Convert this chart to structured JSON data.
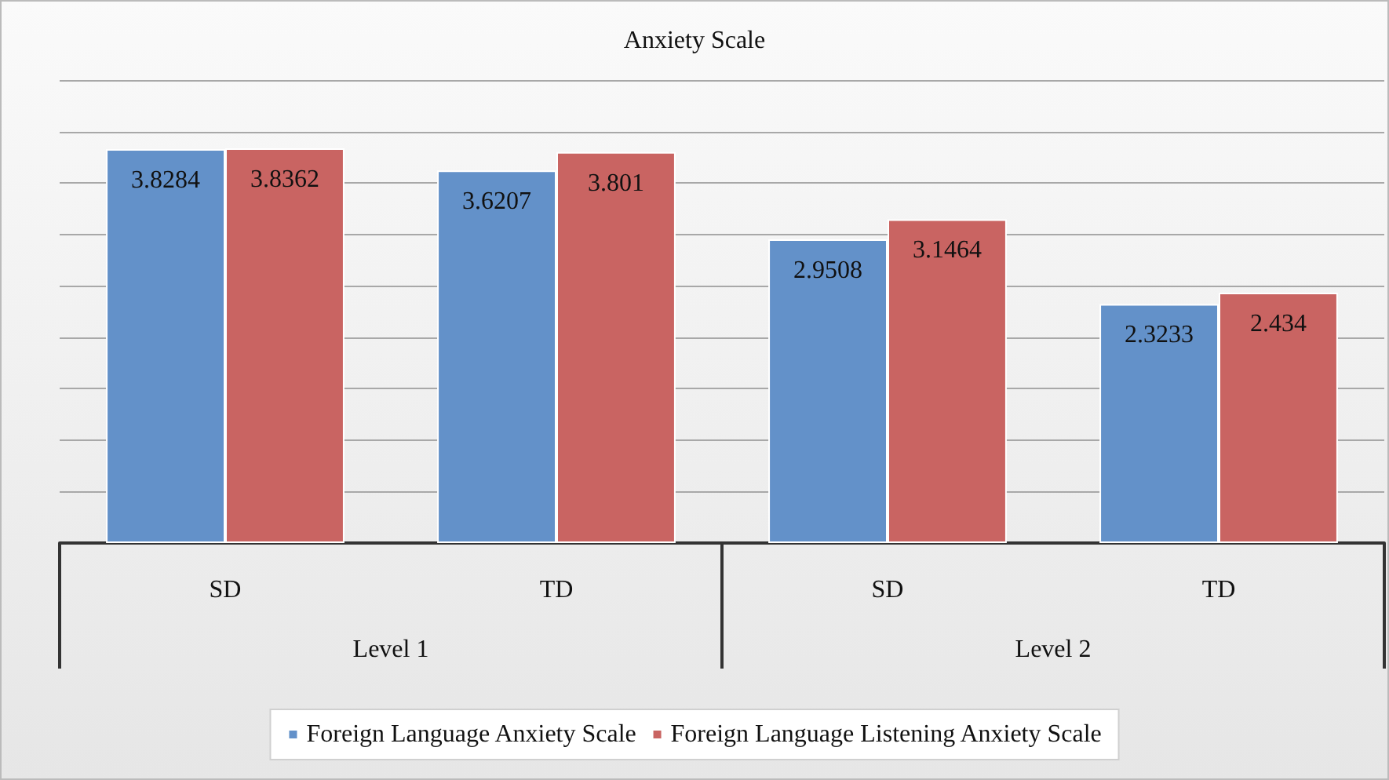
{
  "chart_data": {
    "type": "bar",
    "title": "Anxiety Scale",
    "categories": [
      "SD",
      "TD",
      "SD",
      "TD"
    ],
    "annotations": [
      "Level 1",
      "Level 2"
    ],
    "series": [
      {
        "name": "Foreign Language Anxiety Scale",
        "color": "#6391c9",
        "values": [
          3.8284,
          3.6207,
          2.9508,
          2.3233
        ]
      },
      {
        "name": "Foreign Language Listening Anxiety Scale",
        "color": "#c96462",
        "values": [
          3.8362,
          3.801,
          3.1464,
          2.434
        ]
      }
    ],
    "ylim": [
      0,
      4.5
    ],
    "yticks": [
      {
        "value": 0,
        "label": null
      },
      {
        "value": 0.5,
        "label": null
      },
      {
        "value": 1,
        "label": null
      },
      {
        "value": 1.5,
        "label": null
      },
      {
        "value": 2,
        "label": null
      },
      {
        "value": 2.5,
        "label": null
      },
      {
        "value": 3,
        "label": null
      },
      {
        "value": 3.5,
        "label": null
      },
      {
        "value": 4,
        "label": null
      },
      {
        "value": 4.5,
        "label": null
      }
    ],
    "grid": "y",
    "tick_labels": "x",
    "data_labels": true,
    "legend": "bottom"
  }
}
